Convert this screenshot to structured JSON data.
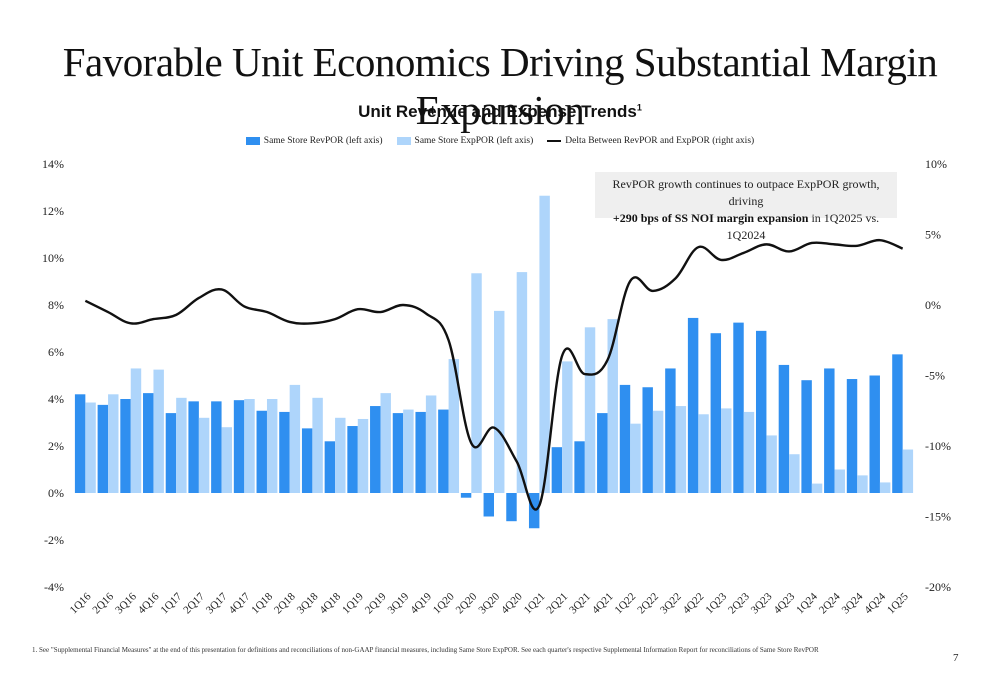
{
  "page": {
    "title": "Favorable Unit Economics Driving Substantial Margin Expansion",
    "footnote": "1. See \"Supplemental Financial Measures\" at the end of this presentation for definitions and reconciliations of non-GAAP financial measures, including Same Store ExpPOR. See each quarter's respective Supplemental Information Report for reconciliations of Same Store RevPOR",
    "page_number": "7"
  },
  "callout": {
    "line1": "RevPOR growth continues to outpace ExpPOR growth, driving",
    "bold": "+290 bps of SS NOI margin expansion",
    "rest": " in 1Q2025 vs. 1Q2024"
  },
  "colors": {
    "revpor": "#2f8ff0",
    "exppor": "#aed5fb",
    "delta": "#111111"
  },
  "chart_data": {
    "type": "bar",
    "title": "Unit Revenue and Expense Trends",
    "title_sup": "1",
    "legend_position": "top",
    "grid": false,
    "categories": [
      "1Q16",
      "2Q16",
      "3Q16",
      "4Q16",
      "1Q17",
      "2Q17",
      "3Q17",
      "4Q17",
      "1Q18",
      "2Q18",
      "3Q18",
      "4Q18",
      "1Q19",
      "2Q19",
      "3Q19",
      "4Q19",
      "1Q20",
      "2Q20",
      "3Q20",
      "4Q20",
      "1Q21",
      "2Q21",
      "3Q21",
      "4Q21",
      "1Q22",
      "2Q22",
      "3Q22",
      "4Q22",
      "1Q23",
      "2Q23",
      "3Q23",
      "4Q23",
      "1Q24",
      "2Q24",
      "3Q24",
      "4Q24",
      "1Q25"
    ],
    "left_axis": {
      "range": [
        -4,
        14
      ],
      "ticks": [
        "-4%",
        "-2%",
        "0%",
        "2%",
        "4%",
        "6%",
        "8%",
        "10%",
        "12%",
        "14%"
      ]
    },
    "right_axis": {
      "range": [
        -20,
        10
      ],
      "ticks": [
        "-20%",
        "-15%",
        "-10%",
        "-5%",
        "0%",
        "5%",
        "10%"
      ]
    },
    "series": [
      {
        "name": "Same Store RevPOR (left axis)",
        "axis": "left",
        "kind": "bar",
        "values": [
          4.2,
          3.75,
          4.0,
          4.25,
          3.4,
          3.9,
          3.9,
          3.95,
          3.5,
          3.45,
          2.75,
          2.2,
          2.85,
          3.7,
          3.4,
          3.45,
          3.55,
          -0.2,
          -1.0,
          -1.2,
          -1.5,
          1.95,
          2.2,
          3.4,
          4.6,
          4.5,
          5.3,
          7.45,
          6.8,
          7.25,
          6.9,
          5.45,
          4.8,
          5.3,
          4.85,
          5.0,
          5.9
        ]
      },
      {
        "name": "Same Store ExpPOR (left axis)",
        "axis": "left",
        "kind": "bar",
        "values": [
          3.85,
          4.2,
          5.3,
          5.25,
          4.05,
          3.2,
          2.8,
          4.0,
          4.0,
          4.6,
          4.05,
          3.2,
          3.15,
          4.25,
          3.55,
          4.15,
          5.7,
          9.35,
          7.75,
          9.4,
          12.65,
          5.6,
          7.05,
          7.4,
          2.95,
          3.5,
          3.7,
          3.35,
          3.6,
          3.45,
          2.45,
          1.65,
          0.4,
          1.0,
          0.75,
          0.45,
          1.85
        ]
      },
      {
        "name": "Delta Between RevPOR and ExpPOR (right axis)",
        "axis": "right",
        "kind": "line",
        "values": [
          0.3,
          -0.5,
          -1.3,
          -1.0,
          -0.7,
          0.5,
          1.1,
          -0.1,
          -0.5,
          -1.2,
          -1.3,
          -1.0,
          -0.3,
          -0.5,
          0.0,
          -0.6,
          -2.5,
          -9.8,
          -8.7,
          -11.1,
          -14.2,
          -3.6,
          -4.9,
          -3.9,
          1.7,
          1.0,
          1.9,
          4.1,
          3.2,
          3.7,
          4.3,
          3.8,
          4.4,
          4.3,
          4.2,
          4.6,
          4.0
        ]
      }
    ]
  }
}
